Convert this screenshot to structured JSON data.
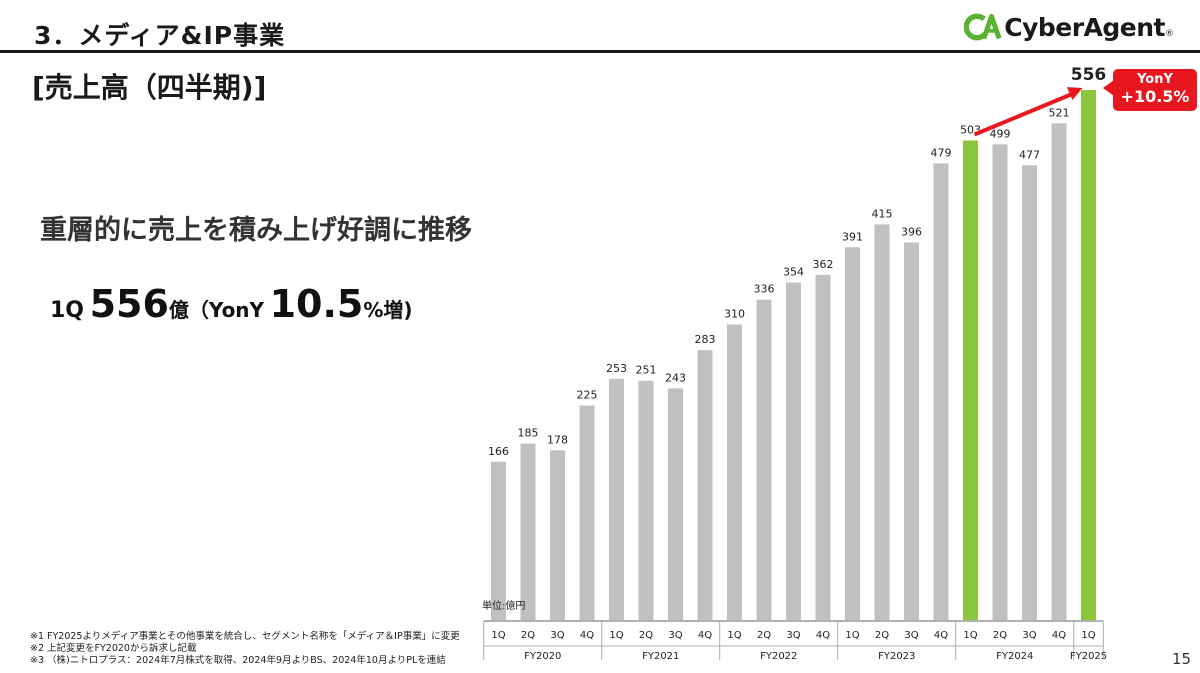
{
  "header": {
    "section_title": "3．メディア&IP事業",
    "logo_text": "CyberAgent",
    "logo_registered": "®",
    "logo_mark_text": "CA"
  },
  "slide": {
    "heading": "[売上高（四半期)]",
    "lead": "重層的に売上を積み上げ好調に推移",
    "highlight": {
      "quarter": "1Q",
      "value": "556",
      "unit": "億（YonY",
      "growth": "10.5",
      "suffix": "%増)"
    }
  },
  "badge": {
    "line1": "YonY",
    "line2": "+10.5%"
  },
  "notes": [
    "※1 FY2025よりメディア事業とその他事業を統合し、セグメント名称を「メディア＆IP事業」に変更",
    "※2 上記変更をFY2020から訴求し記載",
    "※3 （株)ニトロプラス：2024年7月株式を取得、2024年9月よりBS、2024年10月よりPLを連結"
  ],
  "page_number": "15",
  "colors": {
    "gray_bar": "#c0c0c0",
    "green_bar": "#8cc63f",
    "red": "#e8171f",
    "logo_green": "#5ab233"
  },
  "chart_data": {
    "type": "bar",
    "unit_label": "単位:億円",
    "ylim": [
      0,
      556
    ],
    "grid": false,
    "fiscal_years": [
      "FY2020",
      "FY2021",
      "FY2022",
      "FY2023",
      "FY2024",
      "FY2025"
    ],
    "quarters": [
      "1Q",
      "2Q",
      "3Q",
      "4Q",
      "1Q",
      "2Q",
      "3Q",
      "4Q",
      "1Q",
      "2Q",
      "3Q",
      "4Q",
      "1Q",
      "2Q",
      "3Q",
      "4Q",
      "1Q",
      "2Q",
      "3Q",
      "4Q",
      "1Q"
    ],
    "values": [
      166,
      185,
      178,
      225,
      253,
      251,
      243,
      283,
      310,
      336,
      354,
      362,
      391,
      415,
      396,
      479,
      503,
      499,
      477,
      521,
      556
    ],
    "highlight_indices": [
      16,
      20
    ],
    "arrow": {
      "from_index": 16,
      "to_index": 20,
      "label": "YonY +10.5%"
    }
  }
}
